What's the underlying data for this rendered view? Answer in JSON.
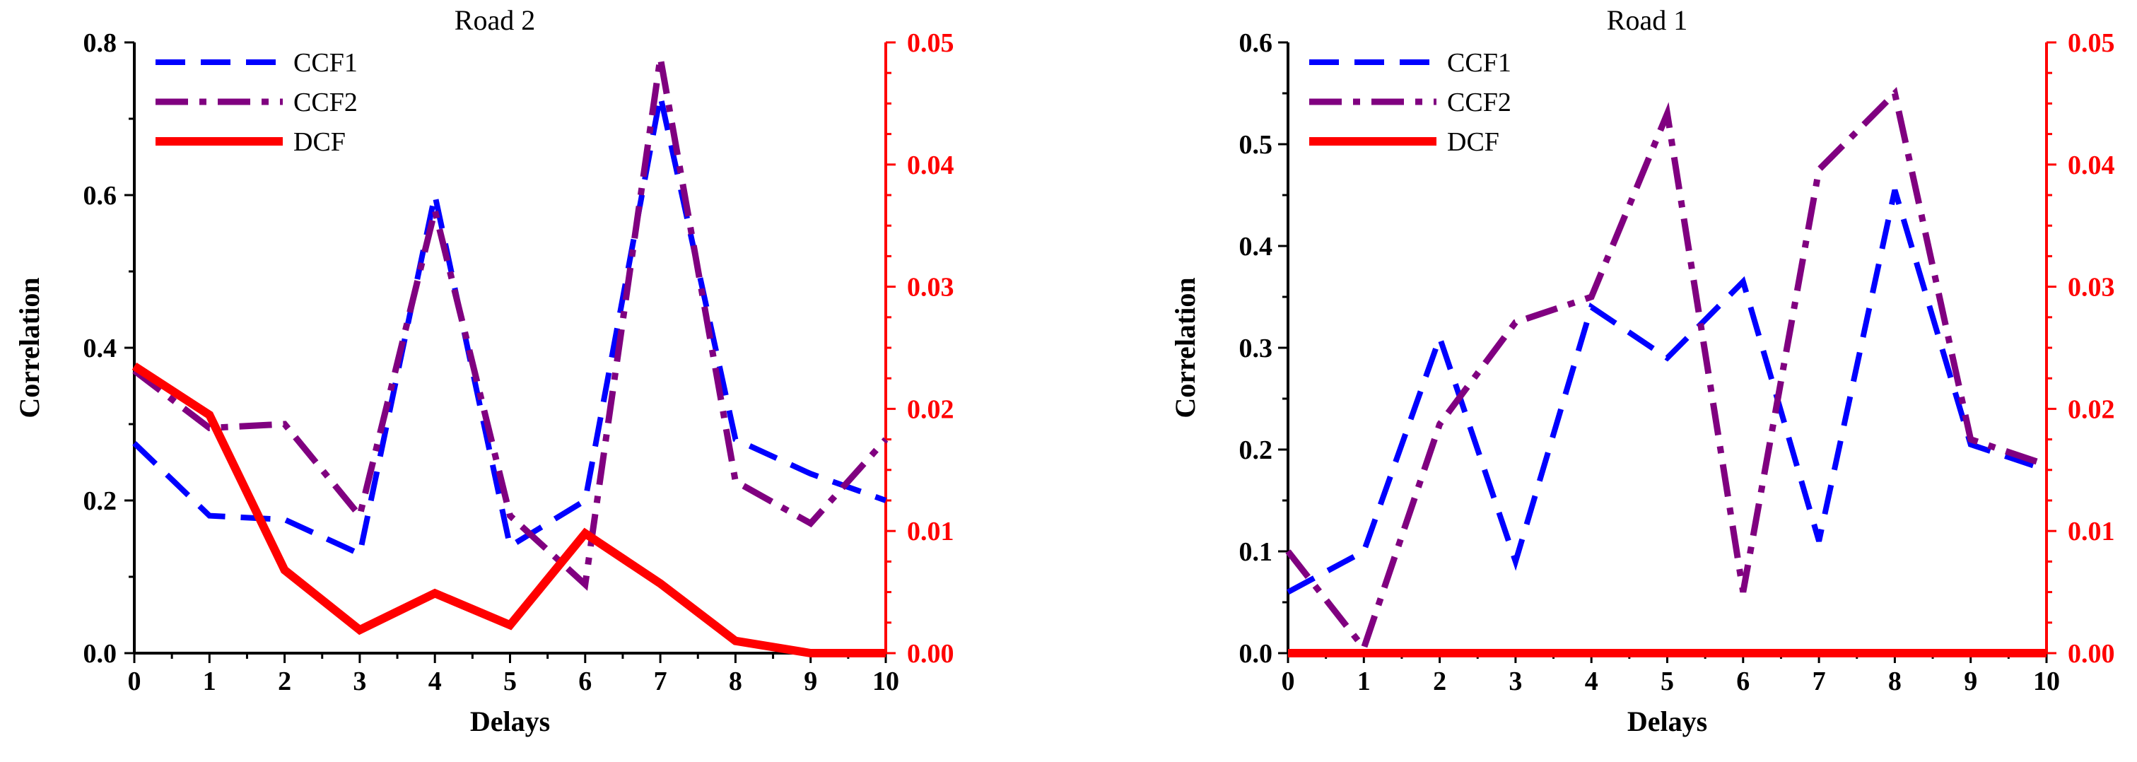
{
  "chart_data": [
    {
      "type": "line",
      "title": "Road 2",
      "xlabel": "Delays",
      "ylabel": "Correlation",
      "x": [
        0,
        1,
        2,
        3,
        4,
        5,
        6,
        7,
        8,
        9,
        10
      ],
      "xticks": [
        "0",
        "1",
        "2",
        "3",
        "4",
        "5",
        "6",
        "7",
        "8",
        "9",
        "10"
      ],
      "xlim": [
        0,
        10
      ],
      "ylim": [
        0,
        0.8
      ],
      "yticks": [
        "0.0",
        "0.2",
        "0.4",
        "0.6",
        "0.8"
      ],
      "y2lim": [
        0,
        0.05
      ],
      "y2ticks": [
        "0.00",
        "0.01",
        "0.02",
        "0.03",
        "0.04",
        "0.05"
      ],
      "grid": false,
      "legend_position": "top-left",
      "series": [
        {
          "name": "CCF1",
          "axis": "left",
          "color": "#0000ff",
          "style": "dash",
          "values": [
            0.275,
            0.18,
            0.175,
            0.13,
            0.6,
            0.14,
            0.2,
            0.73,
            0.28,
            0.235,
            0.2
          ]
        },
        {
          "name": "CCF2",
          "axis": "left",
          "color": "#800080",
          "style": "dashdot",
          "values": [
            0.37,
            0.295,
            0.3,
            0.18,
            0.58,
            0.18,
            0.09,
            0.78,
            0.225,
            0.17,
            0.28
          ]
        },
        {
          "name": "DCF",
          "axis": "right",
          "color": "#ff0000",
          "style": "solid",
          "values": [
            0.0235,
            0.0195,
            0.0068,
            0.0019,
            0.0049,
            0.0023,
            0.0098,
            0.0057,
            0.001,
            0.0,
            0.0
          ]
        }
      ]
    },
    {
      "type": "line",
      "title": "Road 1",
      "xlabel": "Delays",
      "ylabel": "Correlation",
      "x": [
        0,
        1,
        2,
        3,
        4,
        5,
        6,
        7,
        8,
        9,
        10
      ],
      "xticks": [
        "0",
        "1",
        "2",
        "3",
        "4",
        "5",
        "6",
        "7",
        "8",
        "9",
        "10"
      ],
      "xlim": [
        0,
        10
      ],
      "ylim": [
        0,
        0.6
      ],
      "yticks": [
        "0.0",
        "0.1",
        "0.2",
        "0.3",
        "0.4",
        "0.5",
        "0.6"
      ],
      "y2lim": [
        0,
        0.05
      ],
      "y2ticks": [
        "0.00",
        "0.01",
        "0.02",
        "0.03",
        "0.04",
        "0.05"
      ],
      "grid": false,
      "legend_position": "top-left",
      "series": [
        {
          "name": "CCF1",
          "axis": "left",
          "color": "#0000ff",
          "style": "dash",
          "values": [
            0.06,
            0.1,
            0.31,
            0.09,
            0.34,
            0.29,
            0.365,
            0.11,
            0.455,
            0.205,
            0.18
          ]
        },
        {
          "name": "CCF2",
          "axis": "left",
          "color": "#800080",
          "style": "dashdot",
          "values": [
            0.1,
            0.005,
            0.225,
            0.325,
            0.35,
            0.53,
            0.06,
            0.475,
            0.55,
            0.21,
            0.185
          ]
        },
        {
          "name": "DCF",
          "axis": "right",
          "color": "#ff0000",
          "style": "solid",
          "values": [
            0,
            0,
            0,
            0,
            0,
            0,
            0,
            0,
            0,
            0,
            0
          ]
        }
      ]
    }
  ]
}
